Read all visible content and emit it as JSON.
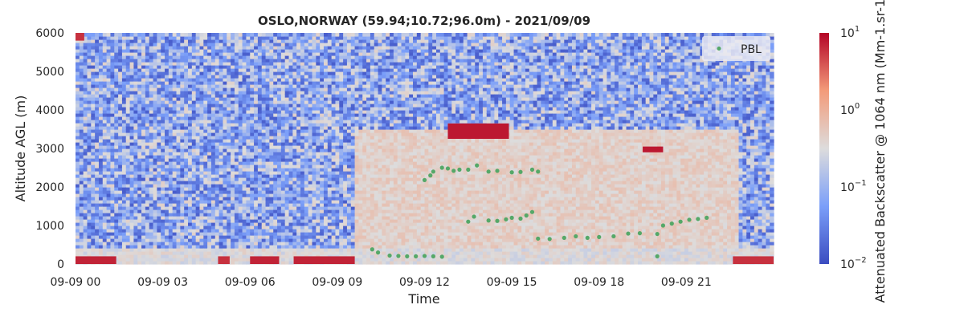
{
  "chart_data": {
    "type": "heatmap",
    "title": "OSLO,NORWAY (59.94;10.72;96.0m) - 2021/09/09",
    "xlabel": "Time",
    "ylabel": "Altitude AGL (m)",
    "colorbar_label": "Attenuated Backscatter @ 1064 nm (Mm-1.sr-1)",
    "colormap": "coolwarm",
    "color_scale": "log",
    "color_range": [
      0.01,
      10
    ],
    "colorbar_ticks": [
      {
        "base": "10",
        "exp": "1",
        "value": 10
      },
      {
        "base": "10",
        "exp": "0",
        "value": 1
      },
      {
        "base": "10",
        "exp": "−1",
        "value": 0.1
      },
      {
        "base": "10",
        "exp": "−2",
        "value": 0.01
      }
    ],
    "xlim": [
      0,
      24
    ],
    "ylim": [
      0,
      6000
    ],
    "x_ticks": [
      {
        "label": "09-09 00",
        "value": 0
      },
      {
        "label": "09-09 03",
        "value": 3
      },
      {
        "label": "09-09 06",
        "value": 6
      },
      {
        "label": "09-09 09",
        "value": 9
      },
      {
        "label": "09-09 12",
        "value": 12
      },
      {
        "label": "09-09 15",
        "value": 15
      },
      {
        "label": "09-09 18",
        "value": 18
      },
      {
        "label": "09-09 21",
        "value": 21
      }
    ],
    "y_ticks": [
      0,
      1000,
      2000,
      3000,
      4000,
      5000,
      6000
    ],
    "legend": {
      "position": "top-right",
      "label": "PBL",
      "color": "#55a868"
    },
    "features": [
      {
        "t0": 12.8,
        "t1": 14.9,
        "z0": 3250,
        "z1": 3650,
        "value": 8
      },
      {
        "t0": 19.5,
        "t1": 20.2,
        "z0": 2900,
        "z1": 3050,
        "value": 8
      },
      {
        "t0": 0.0,
        "t1": 1.4,
        "z0": 0,
        "z1": 200,
        "value": 7
      },
      {
        "t0": 4.9,
        "t1": 5.3,
        "z0": 0,
        "z1": 200,
        "value": 6
      },
      {
        "t0": 6.0,
        "t1": 7.0,
        "z0": 0,
        "z1": 200,
        "value": 7
      },
      {
        "t0": 7.5,
        "t1": 9.6,
        "z0": 0,
        "z1": 200,
        "value": 7
      },
      {
        "t0": 22.6,
        "t1": 24.0,
        "z0": 0,
        "z1": 200,
        "value": 6
      },
      {
        "t0": 0.0,
        "t1": 0.3,
        "z0": 5800,
        "z1": 6000,
        "value": 6
      }
    ],
    "pbl": [
      {
        "x": 10.2,
        "y": 380
      },
      {
        "x": 10.4,
        "y": 300
      },
      {
        "x": 10.8,
        "y": 220
      },
      {
        "x": 11.1,
        "y": 210
      },
      {
        "x": 11.4,
        "y": 200
      },
      {
        "x": 11.7,
        "y": 200
      },
      {
        "x": 12.0,
        "y": 210
      },
      {
        "x": 12.3,
        "y": 200
      },
      {
        "x": 12.6,
        "y": 190
      },
      {
        "x": 12.0,
        "y": 2180
      },
      {
        "x": 12.2,
        "y": 2300
      },
      {
        "x": 12.3,
        "y": 2400
      },
      {
        "x": 12.6,
        "y": 2500
      },
      {
        "x": 12.8,
        "y": 2480
      },
      {
        "x": 13.0,
        "y": 2420
      },
      {
        "x": 13.2,
        "y": 2450
      },
      {
        "x": 13.5,
        "y": 2450
      },
      {
        "x": 13.8,
        "y": 2560
      },
      {
        "x": 14.2,
        "y": 2400
      },
      {
        "x": 14.5,
        "y": 2420
      },
      {
        "x": 15.0,
        "y": 2380
      },
      {
        "x": 15.3,
        "y": 2390
      },
      {
        "x": 15.7,
        "y": 2450
      },
      {
        "x": 15.9,
        "y": 2400
      },
      {
        "x": 13.5,
        "y": 1100
      },
      {
        "x": 13.7,
        "y": 1230
      },
      {
        "x": 14.2,
        "y": 1130
      },
      {
        "x": 14.5,
        "y": 1120
      },
      {
        "x": 14.8,
        "y": 1160
      },
      {
        "x": 15.0,
        "y": 1200
      },
      {
        "x": 15.3,
        "y": 1180
      },
      {
        "x": 15.5,
        "y": 1260
      },
      {
        "x": 15.7,
        "y": 1350
      },
      {
        "x": 15.9,
        "y": 660
      },
      {
        "x": 16.3,
        "y": 650
      },
      {
        "x": 16.8,
        "y": 680
      },
      {
        "x": 17.2,
        "y": 720
      },
      {
        "x": 17.6,
        "y": 680
      },
      {
        "x": 18.0,
        "y": 700
      },
      {
        "x": 18.5,
        "y": 720
      },
      {
        "x": 19.0,
        "y": 790
      },
      {
        "x": 19.4,
        "y": 800
      },
      {
        "x": 20.0,
        "y": 780
      },
      {
        "x": 20.2,
        "y": 1000
      },
      {
        "x": 20.5,
        "y": 1050
      },
      {
        "x": 20.8,
        "y": 1100
      },
      {
        "x": 21.1,
        "y": 1150
      },
      {
        "x": 21.4,
        "y": 1170
      },
      {
        "x": 21.7,
        "y": 1200
      },
      {
        "x": 20.0,
        "y": 200
      }
    ]
  }
}
